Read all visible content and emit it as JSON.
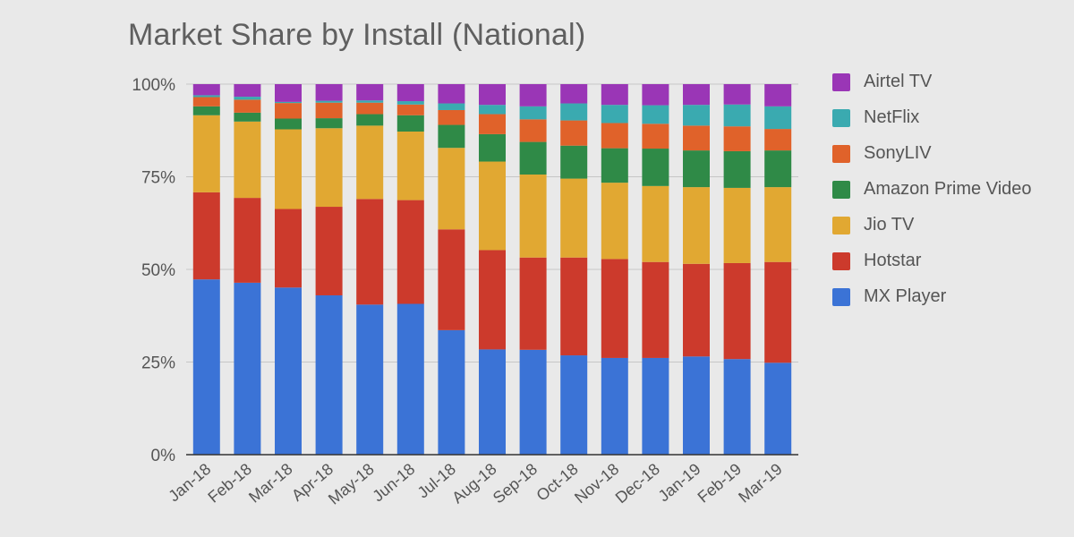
{
  "chart_data": {
    "type": "bar",
    "stacked": true,
    "title": "Market Share by Install (National)",
    "xlabel": "",
    "ylabel": "",
    "ylim": [
      0,
      100
    ],
    "y_ticks": [
      "0%",
      "25%",
      "50%",
      "75%",
      "100%"
    ],
    "y_tick_values": [
      0,
      25,
      50,
      75,
      100
    ],
    "grid": true,
    "legend_position": "right",
    "categories": [
      "Jan-18",
      "Feb-18",
      "Mar-18",
      "Apr-18",
      "May-18",
      "Jun-18",
      "Jul-18",
      "Aug-18",
      "Sep-18",
      "Oct-18",
      "Nov-18",
      "Dec-18",
      "Jan-19",
      "Feb-19",
      "Mar-19"
    ],
    "series": [
      {
        "name": "MX Player",
        "color": "#3b73d6",
        "values": [
          47.3,
          46.4,
          45.1,
          43.0,
          40.5,
          40.7,
          33.6,
          28.4,
          28.3,
          26.8,
          26.1,
          26.1,
          26.5,
          25.8,
          24.8
        ]
      },
      {
        "name": "Hotstar",
        "color": "#cc3a2c",
        "values": [
          23.5,
          22.9,
          21.2,
          23.9,
          28.5,
          28.0,
          27.2,
          26.8,
          24.9,
          26.4,
          26.7,
          25.9,
          25.0,
          25.9,
          27.2
        ]
      },
      {
        "name": "Jio TV",
        "color": "#e1a832",
        "values": [
          20.8,
          20.6,
          21.5,
          21.2,
          19.8,
          18.5,
          22.0,
          23.9,
          22.4,
          21.3,
          20.6,
          20.5,
          20.7,
          20.3,
          20.2
        ]
      },
      {
        "name": "Amazon Prime Video",
        "color": "#2f8a47",
        "values": [
          2.4,
          2.4,
          2.9,
          2.7,
          3.1,
          4.4,
          6.2,
          7.4,
          8.8,
          8.9,
          9.3,
          10.1,
          9.9,
          9.9,
          9.9
        ]
      },
      {
        "name": "SonyLIV",
        "color": "#e0622a",
        "values": [
          2.5,
          3.5,
          4.2,
          4.2,
          3.1,
          2.9,
          4.0,
          5.4,
          6.1,
          6.8,
          6.8,
          6.7,
          6.7,
          6.7,
          5.8
        ]
      },
      {
        "name": "NetFlix",
        "color": "#3aaab0",
        "values": [
          0.5,
          0.8,
          0.3,
          0.5,
          0.6,
          0.9,
          1.8,
          2.5,
          3.5,
          4.6,
          4.9,
          5.0,
          5.6,
          5.9,
          6.1
        ]
      },
      {
        "name": "Airtel TV",
        "color": "#9a36b6",
        "values": [
          3.0,
          3.4,
          4.8,
          4.5,
          4.4,
          4.6,
          5.2,
          5.6,
          6.0,
          5.2,
          5.6,
          5.7,
          5.6,
          5.5,
          6.0
        ]
      }
    ]
  }
}
